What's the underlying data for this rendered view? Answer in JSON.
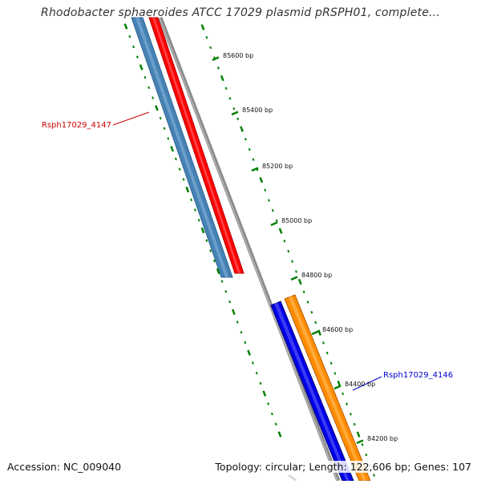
{
  "title": "Rhodobacter sphaeroides ATCC 17029 plasmid pRSPH01, complete...",
  "footer": {
    "accession_label": "Accession:",
    "accession": "NC_009040",
    "topology_label": "Topology:",
    "topology": "circular",
    "length_label": "Length:",
    "length": "122,606 bp",
    "genes_label": "Genes:",
    "genes": "107"
  },
  "ruler": {
    "unit": "bp",
    "labels": [
      "85600 bp",
      "85400 bp",
      "85200 bp",
      "85000 bp",
      "84800 bp",
      "84600 bp",
      "84400 bp",
      "84200 bp"
    ]
  },
  "genes": [
    {
      "name": "Rsph17029_4147",
      "label_color": "#cc0000",
      "strand": "reverse"
    },
    {
      "name": "Rsph17029_4146",
      "label_color": "#0000cc",
      "strand": "forward"
    }
  ],
  "colors": {
    "gene_reverse_outer": "#4682b4",
    "gene_reverse_inner": "#ff0000",
    "gene_forward_outer": "#0000e6",
    "gene_forward_inner": "#ff8c00",
    "backbone": "#808080",
    "ticks": "#008000"
  }
}
